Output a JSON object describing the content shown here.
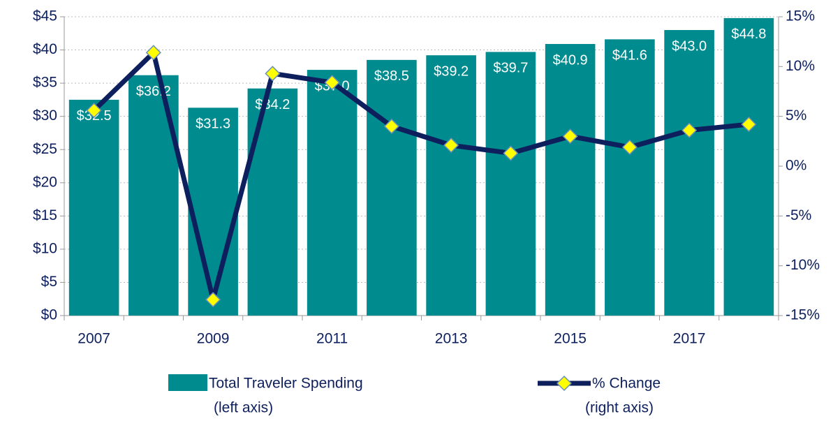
{
  "chart_data": {
    "type": "bar-line",
    "categories": [
      "2007",
      null,
      "2009",
      null,
      "2011",
      null,
      "2013",
      null,
      "2015",
      null,
      "2017",
      null
    ],
    "series": [
      {
        "name": "Total Traveler Spending",
        "note": "(left axis)",
        "type": "bar",
        "color": "#008b8f",
        "axis": "y",
        "values": [
          32.5,
          36.2,
          31.3,
          34.2,
          37.0,
          38.5,
          39.2,
          39.7,
          40.9,
          41.6,
          43.0,
          44.8
        ],
        "value_labels": [
          "$32.5",
          "$36.2",
          "$31.3",
          "$34.2",
          "$37.0",
          "$38.5",
          "$39.2",
          "$39.7",
          "$40.9",
          "$41.6",
          "$43.0",
          "$44.8"
        ]
      },
      {
        "name": "% Change",
        "note": "(right axis)",
        "type": "line",
        "color": "#0d1f5c",
        "marker_color": "#ffff00",
        "axis": "y2",
        "values": [
          5.6,
          11.4,
          -13.4,
          9.3,
          8.4,
          4.0,
          2.1,
          1.3,
          3.0,
          1.9,
          3.6,
          4.2
        ]
      }
    ],
    "ylim": [
      0,
      45
    ],
    "yticks": [
      {
        "value": 0,
        "label": "$0"
      },
      {
        "value": 5,
        "label": "$5"
      },
      {
        "value": 10,
        "label": "$10"
      },
      {
        "value": 15,
        "label": "$15"
      },
      {
        "value": 20,
        "label": "$20"
      },
      {
        "value": 25,
        "label": "$25"
      },
      {
        "value": 30,
        "label": "$30"
      },
      {
        "value": 35,
        "label": "$35"
      },
      {
        "value": 40,
        "label": "$40"
      },
      {
        "value": 45,
        "label": "$45"
      }
    ],
    "y2lim": [
      -15,
      15
    ],
    "y2ticks": [
      {
        "value": -15,
        "label": "-15%"
      },
      {
        "value": -10,
        "label": "-10%"
      },
      {
        "value": -5,
        "label": "-5%"
      },
      {
        "value": 0,
        "label": "0%"
      },
      {
        "value": 5,
        "label": "5%"
      },
      {
        "value": 10,
        "label": "10%"
      },
      {
        "value": 15,
        "label": "15%"
      }
    ],
    "grid": true
  }
}
